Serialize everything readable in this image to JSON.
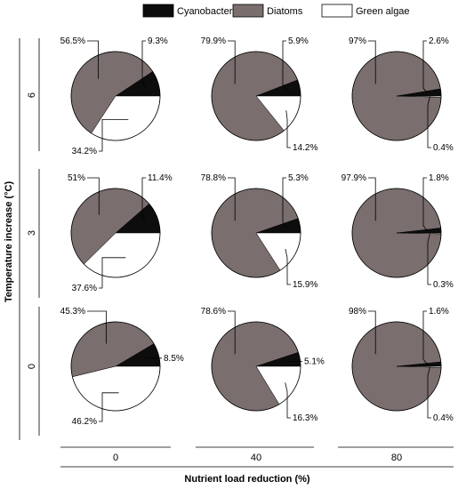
{
  "chart_data": {
    "type": "pie",
    "ylabel": "Temperature increase (°C)",
    "xlabel": "Nutrient load reduction (%)",
    "legend": {
      "placement": "top-center",
      "entries": [
        {
          "name": "Cyanobacteria",
          "color": "#0d0d0d"
        },
        {
          "name": "Diatoms",
          "color": "#7a6e6e"
        },
        {
          "name": "Green algae",
          "color": "#ffffff"
        }
      ]
    },
    "rows": [
      "6",
      "3",
      "0"
    ],
    "columns": [
      "0",
      "40",
      "80"
    ],
    "panels": [
      {
        "temperature": "6",
        "nutrient_reduction": "0",
        "cyanobacteria": 9.3,
        "diatoms": 56.5,
        "green_algae": 34.2,
        "labels": {
          "cyanobacteria": "9.3%",
          "diatoms": "56.5%",
          "green_algae": "34.2%"
        }
      },
      {
        "temperature": "6",
        "nutrient_reduction": "40",
        "cyanobacteria": 5.9,
        "diatoms": 79.9,
        "green_algae": 14.2,
        "labels": {
          "cyanobacteria": "5.9%",
          "diatoms": "79.9%",
          "green_algae": "14.2%"
        }
      },
      {
        "temperature": "6",
        "nutrient_reduction": "80",
        "cyanobacteria": 2.6,
        "diatoms": 97.0,
        "green_algae": 0.4,
        "labels": {
          "cyanobacteria": "2.6%",
          "diatoms": "97%",
          "green_algae": "0.4%"
        }
      },
      {
        "temperature": "3",
        "nutrient_reduction": "0",
        "cyanobacteria": 11.4,
        "diatoms": 51.0,
        "green_algae": 37.6,
        "labels": {
          "cyanobacteria": "11.4%",
          "diatoms": "51%",
          "green_algae": "37.6%"
        }
      },
      {
        "temperature": "3",
        "nutrient_reduction": "40",
        "cyanobacteria": 5.3,
        "diatoms": 78.8,
        "green_algae": 15.9,
        "labels": {
          "cyanobacteria": "5.3%",
          "diatoms": "78.8%",
          "green_algae": "15.9%"
        }
      },
      {
        "temperature": "3",
        "nutrient_reduction": "80",
        "cyanobacteria": 1.8,
        "diatoms": 97.9,
        "green_algae": 0.3,
        "labels": {
          "cyanobacteria": "1.8%",
          "diatoms": "97.9%",
          "green_algae": "0.3%"
        }
      },
      {
        "temperature": "0",
        "nutrient_reduction": "0",
        "cyanobacteria": 8.5,
        "diatoms": 45.3,
        "green_algae": 46.2,
        "labels": {
          "cyanobacteria": "8.5%",
          "diatoms": "45.3%",
          "green_algae": "46.2%"
        }
      },
      {
        "temperature": "0",
        "nutrient_reduction": "40",
        "cyanobacteria": 5.1,
        "diatoms": 78.6,
        "green_algae": 16.3,
        "labels": {
          "cyanobacteria": "5.1%",
          "diatoms": "78.6%",
          "green_algae": "16.3%"
        }
      },
      {
        "temperature": "0",
        "nutrient_reduction": "80",
        "cyanobacteria": 1.6,
        "diatoms": 98.0,
        "green_algae": 0.4,
        "labels": {
          "cyanobacteria": "1.6%",
          "diatoms": "98%",
          "green_algae": "0.4%"
        }
      }
    ]
  }
}
